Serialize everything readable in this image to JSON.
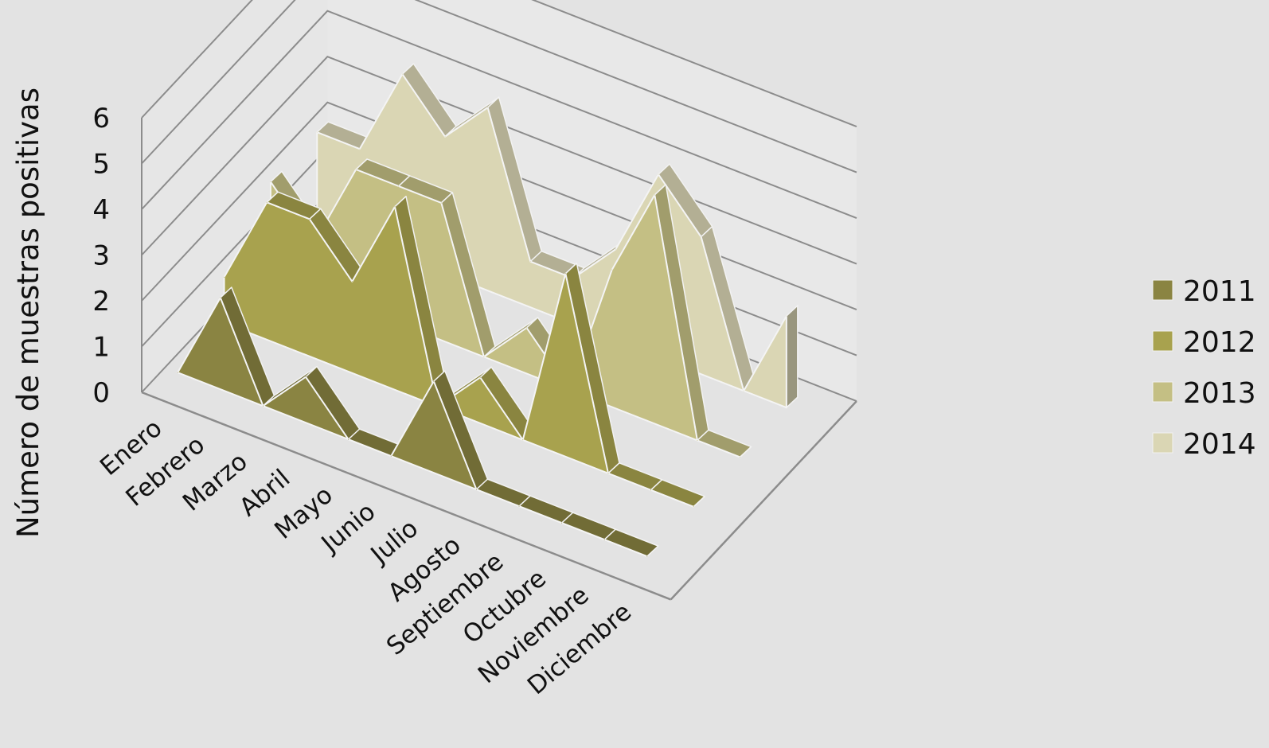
{
  "chart_data": {
    "type": "area",
    "variant": "3d-area",
    "title": "",
    "xlabel": "",
    "ylabel": "Número de muestras positivas",
    "ylim": [
      0,
      6
    ],
    "yticks": [
      "0",
      "1",
      "2",
      "3",
      "4",
      "5",
      "6"
    ],
    "grid": true,
    "legend_position": "right",
    "categories": [
      "Enero",
      "Febrero",
      "Marzo",
      "Abril",
      "Mayo",
      "Junio",
      "Julio",
      "Agosto",
      "Septiembre",
      "Octubre",
      "Noviembre",
      "Diciembre"
    ],
    "series": [
      {
        "name": "2011",
        "color": "#8a8442",
        "values": [
          0,
          2,
          0,
          1,
          0,
          0,
          2,
          0,
          0,
          0,
          0,
          0
        ]
      },
      {
        "name": "2012",
        "color": "#a8a24e",
        "values": [
          1,
          3,
          3,
          2,
          4,
          0,
          1,
          0,
          4,
          0,
          0,
          0
        ]
      },
      {
        "name": "2013",
        "color": "#c4bf84",
        "values": [
          2,
          1,
          3,
          3,
          3,
          0,
          1,
          0,
          3,
          5,
          0,
          0
        ]
      },
      {
        "name": "2014",
        "color": "#dad6b4",
        "values": [
          2,
          2,
          4,
          3,
          4,
          1,
          1,
          2,
          4,
          3,
          0,
          2
        ]
      }
    ]
  }
}
